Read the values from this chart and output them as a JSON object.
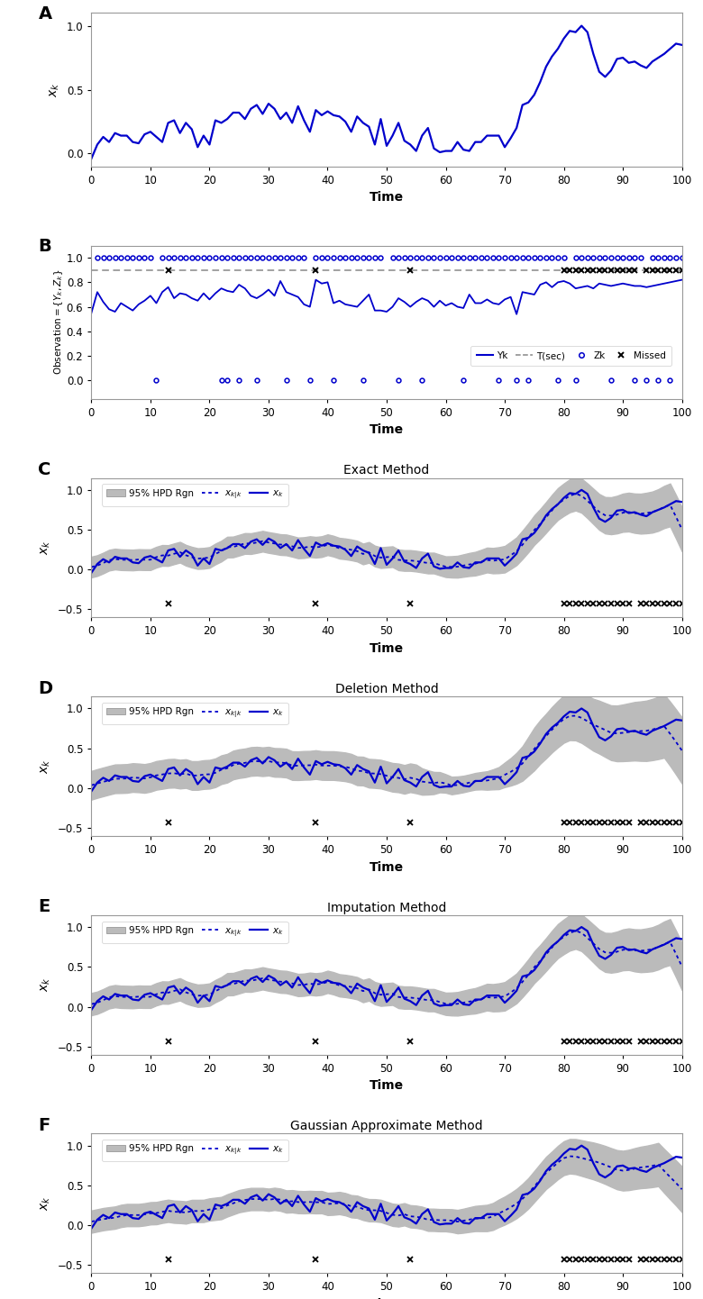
{
  "panel_labels": [
    "A",
    "B",
    "C",
    "D",
    "E",
    "F"
  ],
  "panel_titles": [
    "",
    "",
    "Exact Method",
    "Deletion Method",
    "Imputation Method",
    "Gaussian Approximate Method"
  ],
  "time": [
    0,
    1,
    2,
    3,
    4,
    5,
    6,
    7,
    8,
    9,
    10,
    11,
    12,
    13,
    14,
    15,
    16,
    17,
    18,
    19,
    20,
    21,
    22,
    23,
    24,
    25,
    26,
    27,
    28,
    29,
    30,
    31,
    32,
    33,
    34,
    35,
    36,
    37,
    38,
    39,
    40,
    41,
    42,
    43,
    44,
    45,
    46,
    47,
    48,
    49,
    50,
    51,
    52,
    53,
    54,
    55,
    56,
    57,
    58,
    59,
    60,
    61,
    62,
    63,
    64,
    65,
    66,
    67,
    68,
    69,
    70,
    71,
    72,
    73,
    74,
    75,
    76,
    77,
    78,
    79,
    80,
    81,
    82,
    83,
    84,
    85,
    86,
    87,
    88,
    89,
    90,
    91,
    92,
    93,
    94,
    95,
    96,
    97,
    98,
    99,
    100
  ],
  "xk": [
    -0.04,
    0.07,
    0.13,
    0.09,
    0.16,
    0.14,
    0.14,
    0.09,
    0.08,
    0.15,
    0.17,
    0.13,
    0.09,
    0.24,
    0.26,
    0.16,
    0.24,
    0.19,
    0.05,
    0.14,
    0.07,
    0.26,
    0.24,
    0.27,
    0.32,
    0.32,
    0.27,
    0.35,
    0.38,
    0.31,
    0.39,
    0.35,
    0.27,
    0.32,
    0.24,
    0.37,
    0.26,
    0.17,
    0.34,
    0.3,
    0.33,
    0.3,
    0.29,
    0.25,
    0.17,
    0.29,
    0.24,
    0.21,
    0.07,
    0.27,
    0.06,
    0.14,
    0.24,
    0.1,
    0.07,
    0.02,
    0.14,
    0.2,
    0.04,
    0.01,
    0.02,
    0.02,
    0.09,
    0.03,
    0.02,
    0.09,
    0.09,
    0.14,
    0.14,
    0.14,
    0.05,
    0.12,
    0.2,
    0.38,
    0.4,
    0.46,
    0.56,
    0.68,
    0.76,
    0.82,
    0.9,
    0.96,
    0.95,
    1.0,
    0.95,
    0.78,
    0.64,
    0.6,
    0.65,
    0.74,
    0.75,
    0.71,
    0.72,
    0.69,
    0.67,
    0.72,
    0.75,
    0.78,
    0.82,
    0.86,
    0.85
  ],
  "yk": [
    0.55,
    0.72,
    0.64,
    0.58,
    0.56,
    0.63,
    0.6,
    0.57,
    0.62,
    0.65,
    0.69,
    0.63,
    0.72,
    0.76,
    0.67,
    0.71,
    0.7,
    0.67,
    0.65,
    0.71,
    0.66,
    0.71,
    0.75,
    0.73,
    0.72,
    0.78,
    0.75,
    0.69,
    0.67,
    0.7,
    0.74,
    0.69,
    0.81,
    0.72,
    0.7,
    0.68,
    0.62,
    0.6,
    0.82,
    0.79,
    0.8,
    0.63,
    0.65,
    0.62,
    0.61,
    0.6,
    0.65,
    0.7,
    0.57,
    0.57,
    0.56,
    0.6,
    0.67,
    0.64,
    0.6,
    0.64,
    0.67,
    0.65,
    0.6,
    0.65,
    0.61,
    0.63,
    0.6,
    0.59,
    0.7,
    0.63,
    0.63,
    0.66,
    0.63,
    0.62,
    0.66,
    0.68,
    0.54,
    0.72,
    0.71,
    0.7,
    0.78,
    0.8,
    0.76,
    0.8,
    0.81,
    0.79,
    0.75,
    0.76,
    0.77,
    0.75,
    0.79,
    0.78,
    0.77,
    0.78,
    0.79,
    0.78,
    0.77,
    0.77,
    0.76,
    0.77,
    0.78,
    0.79,
    0.8,
    0.81,
    0.82
  ],
  "threshold": 0.9,
  "zk_at_1": [
    1,
    2,
    3,
    4,
    5,
    6,
    7,
    8,
    9,
    10,
    12,
    13,
    14,
    15,
    16,
    17,
    18,
    19,
    20,
    21,
    22,
    23,
    24,
    25,
    26,
    27,
    28,
    29,
    30,
    31,
    32,
    33,
    34,
    35,
    36,
    38,
    39,
    40,
    41,
    42,
    43,
    44,
    45,
    46,
    47,
    48,
    49,
    51,
    52,
    53,
    54,
    55,
    56,
    57,
    58,
    59,
    60,
    61,
    62,
    63,
    64,
    65,
    66,
    67,
    68,
    69,
    70,
    71,
    72,
    73,
    74,
    75,
    76,
    77,
    78,
    79,
    80,
    82,
    83,
    84,
    85,
    86,
    87,
    88,
    89,
    90,
    91,
    92,
    93,
    95,
    96,
    97,
    98,
    99,
    100
  ],
  "zk_at_0": [
    11,
    22,
    23,
    25,
    28,
    33,
    37,
    41,
    46,
    52,
    56,
    63,
    69,
    72,
    74,
    79,
    82,
    88,
    92,
    94,
    96,
    98
  ],
  "missed_b": [
    13,
    38,
    54,
    80,
    81,
    82,
    83,
    84,
    85,
    86,
    87,
    88,
    89,
    90,
    91,
    92,
    94,
    95,
    96,
    97,
    98,
    99,
    100
  ],
  "missed_cdef": [
    13,
    38,
    54,
    80,
    81,
    82,
    83,
    84,
    85,
    86,
    87,
    88,
    89,
    90,
    91,
    93,
    94,
    95,
    96,
    97,
    98,
    99,
    100
  ],
  "blue_color": "#0000CC",
  "threshold_color": "#888888",
  "band_color": "#BBBBBB",
  "panel_A_ylim": [
    -0.1,
    1.1
  ],
  "panel_B_ylim": [
    -0.15,
    1.1
  ],
  "panel_CDEF_ylim": [
    -0.6,
    1.15
  ],
  "xticks": [
    0,
    10,
    20,
    30,
    40,
    50,
    60,
    70,
    80,
    90,
    100
  ],
  "xlabel": "Time",
  "ylabel_A": "$x_k$",
  "ylabel_CDEF": "$x_k$"
}
